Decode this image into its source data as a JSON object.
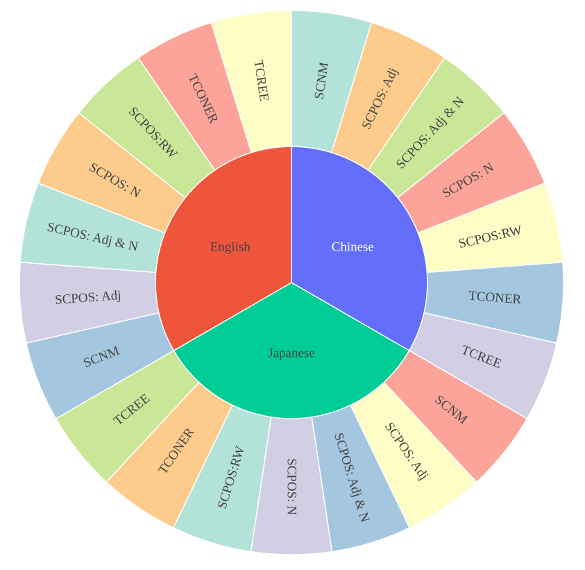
{
  "chart_data": {
    "type": "sunburst",
    "inner": [
      {
        "label": "Chinese",
        "value": 7,
        "color": "#636efa",
        "text_color": "#ffffff"
      },
      {
        "label": "Japanese",
        "value": 7,
        "color": "#00cc96",
        "text_color": "#444444"
      },
      {
        "label": "English",
        "value": 7,
        "color": "#ef553b",
        "text_color": "#444444"
      }
    ],
    "outer": [
      {
        "label": "SCNM",
        "parent": "Chinese",
        "value": 1,
        "color": "#b3e2d8"
      },
      {
        "label": "SCPOS: Adj",
        "parent": "Chinese",
        "value": 1,
        "color": "#fdcb8c"
      },
      {
        "label": "SCPOS: Adj & N",
        "parent": "Chinese",
        "value": 1,
        "color": "#c9e797"
      },
      {
        "label": "SCPOS: N",
        "parent": "Chinese",
        "value": 1,
        "color": "#fca49a"
      },
      {
        "label": "SCPOS:RW",
        "parent": "Chinese",
        "value": 1,
        "color": "#fefdc5"
      },
      {
        "label": "TCONER",
        "parent": "Chinese",
        "value": 1,
        "color": "#a4c7df"
      },
      {
        "label": "TCREE",
        "parent": "Chinese",
        "value": 1,
        "color": "#d2cfe4"
      },
      {
        "label": "SCNM",
        "parent": "English",
        "value": 1,
        "color": "#a4c7df"
      },
      {
        "label": "SCPOS: Adj",
        "parent": "English",
        "value": 1,
        "color": "#d2cfe4"
      },
      {
        "label": "SCPOS: Adj & N",
        "parent": "English",
        "value": 1,
        "color": "#b3e2d8"
      },
      {
        "label": "SCPOS: N",
        "parent": "English",
        "value": 1,
        "color": "#fdcb8c"
      },
      {
        "label": "SCPOS:RW",
        "parent": "English",
        "value": 1,
        "color": "#c9e797"
      },
      {
        "label": "TCONER",
        "parent": "English",
        "value": 1,
        "color": "#fca49a"
      },
      {
        "label": "TCREE",
        "parent": "English",
        "value": 1,
        "color": "#fefdc5"
      },
      {
        "label": "SCNM",
        "parent": "Japanese",
        "value": 1,
        "color": "#fca49a"
      },
      {
        "label": "SCPOS: Adj",
        "parent": "Japanese",
        "value": 1,
        "color": "#fefdc5"
      },
      {
        "label": "SCPOS: Adj & N",
        "parent": "Japanese",
        "value": 1,
        "color": "#a4c7df"
      },
      {
        "label": "SCPOS: N",
        "parent": "Japanese",
        "value": 1,
        "color": "#d2cfe4"
      },
      {
        "label": "SCPOS:RW",
        "parent": "Japanese",
        "value": 1,
        "color": "#b3e2d8"
      },
      {
        "label": "TCONER",
        "parent": "Japanese",
        "value": 1,
        "color": "#fdcb8c"
      },
      {
        "label": "TCREE",
        "parent": "Japanese",
        "value": 1,
        "color": "#c9e797"
      }
    ]
  }
}
